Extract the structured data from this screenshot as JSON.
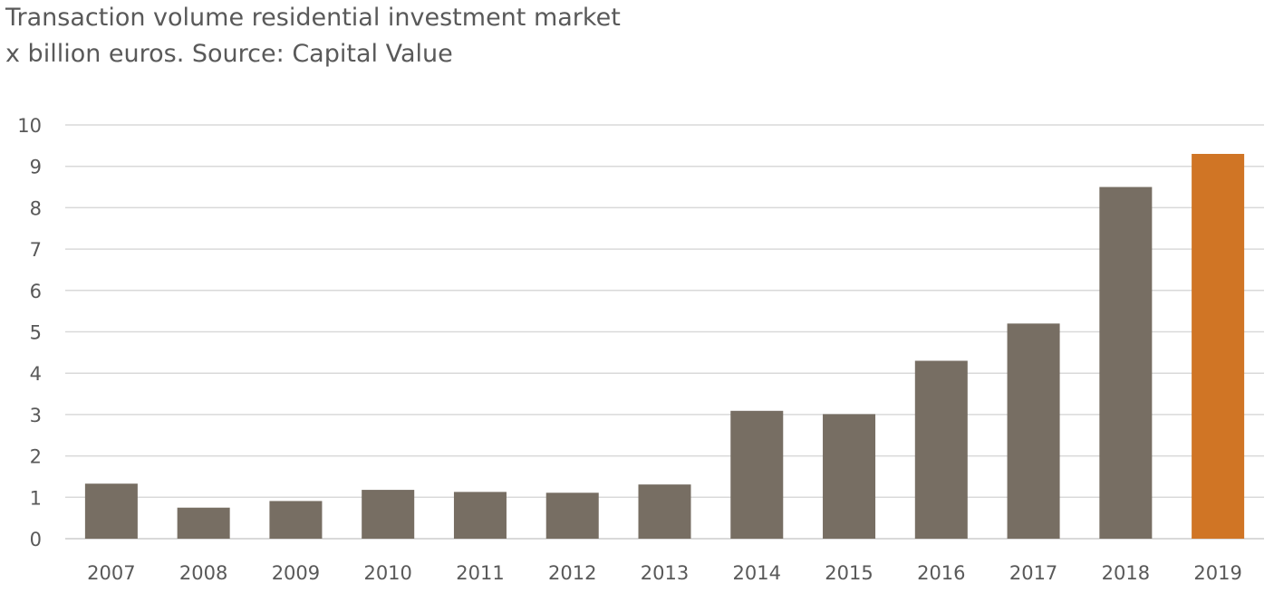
{
  "chart_data": {
    "type": "bar",
    "title": "Transaction volume residential investment market",
    "subtitle": "x billion euros. Source: Capital Value",
    "xlabel": "",
    "ylabel": "",
    "categories": [
      "2007",
      "2008",
      "2009",
      "2010",
      "2011",
      "2012",
      "2013",
      "2014",
      "2015",
      "2016",
      "2017",
      "2018",
      "2019"
    ],
    "values": [
      1.33,
      0.75,
      0.91,
      1.18,
      1.13,
      1.11,
      1.31,
      3.09,
      3.01,
      4.3,
      5.2,
      8.5,
      9.3
    ],
    "ylim": [
      0,
      10
    ],
    "yticks": [
      0,
      1,
      2,
      3,
      4,
      5,
      6,
      7,
      8,
      9,
      10
    ],
    "grid": true,
    "legend": "none",
    "colors": {
      "default": "#776e63",
      "highlight": "#d07525",
      "grid": "#d9d9d9"
    },
    "highlight_category": "2019"
  }
}
